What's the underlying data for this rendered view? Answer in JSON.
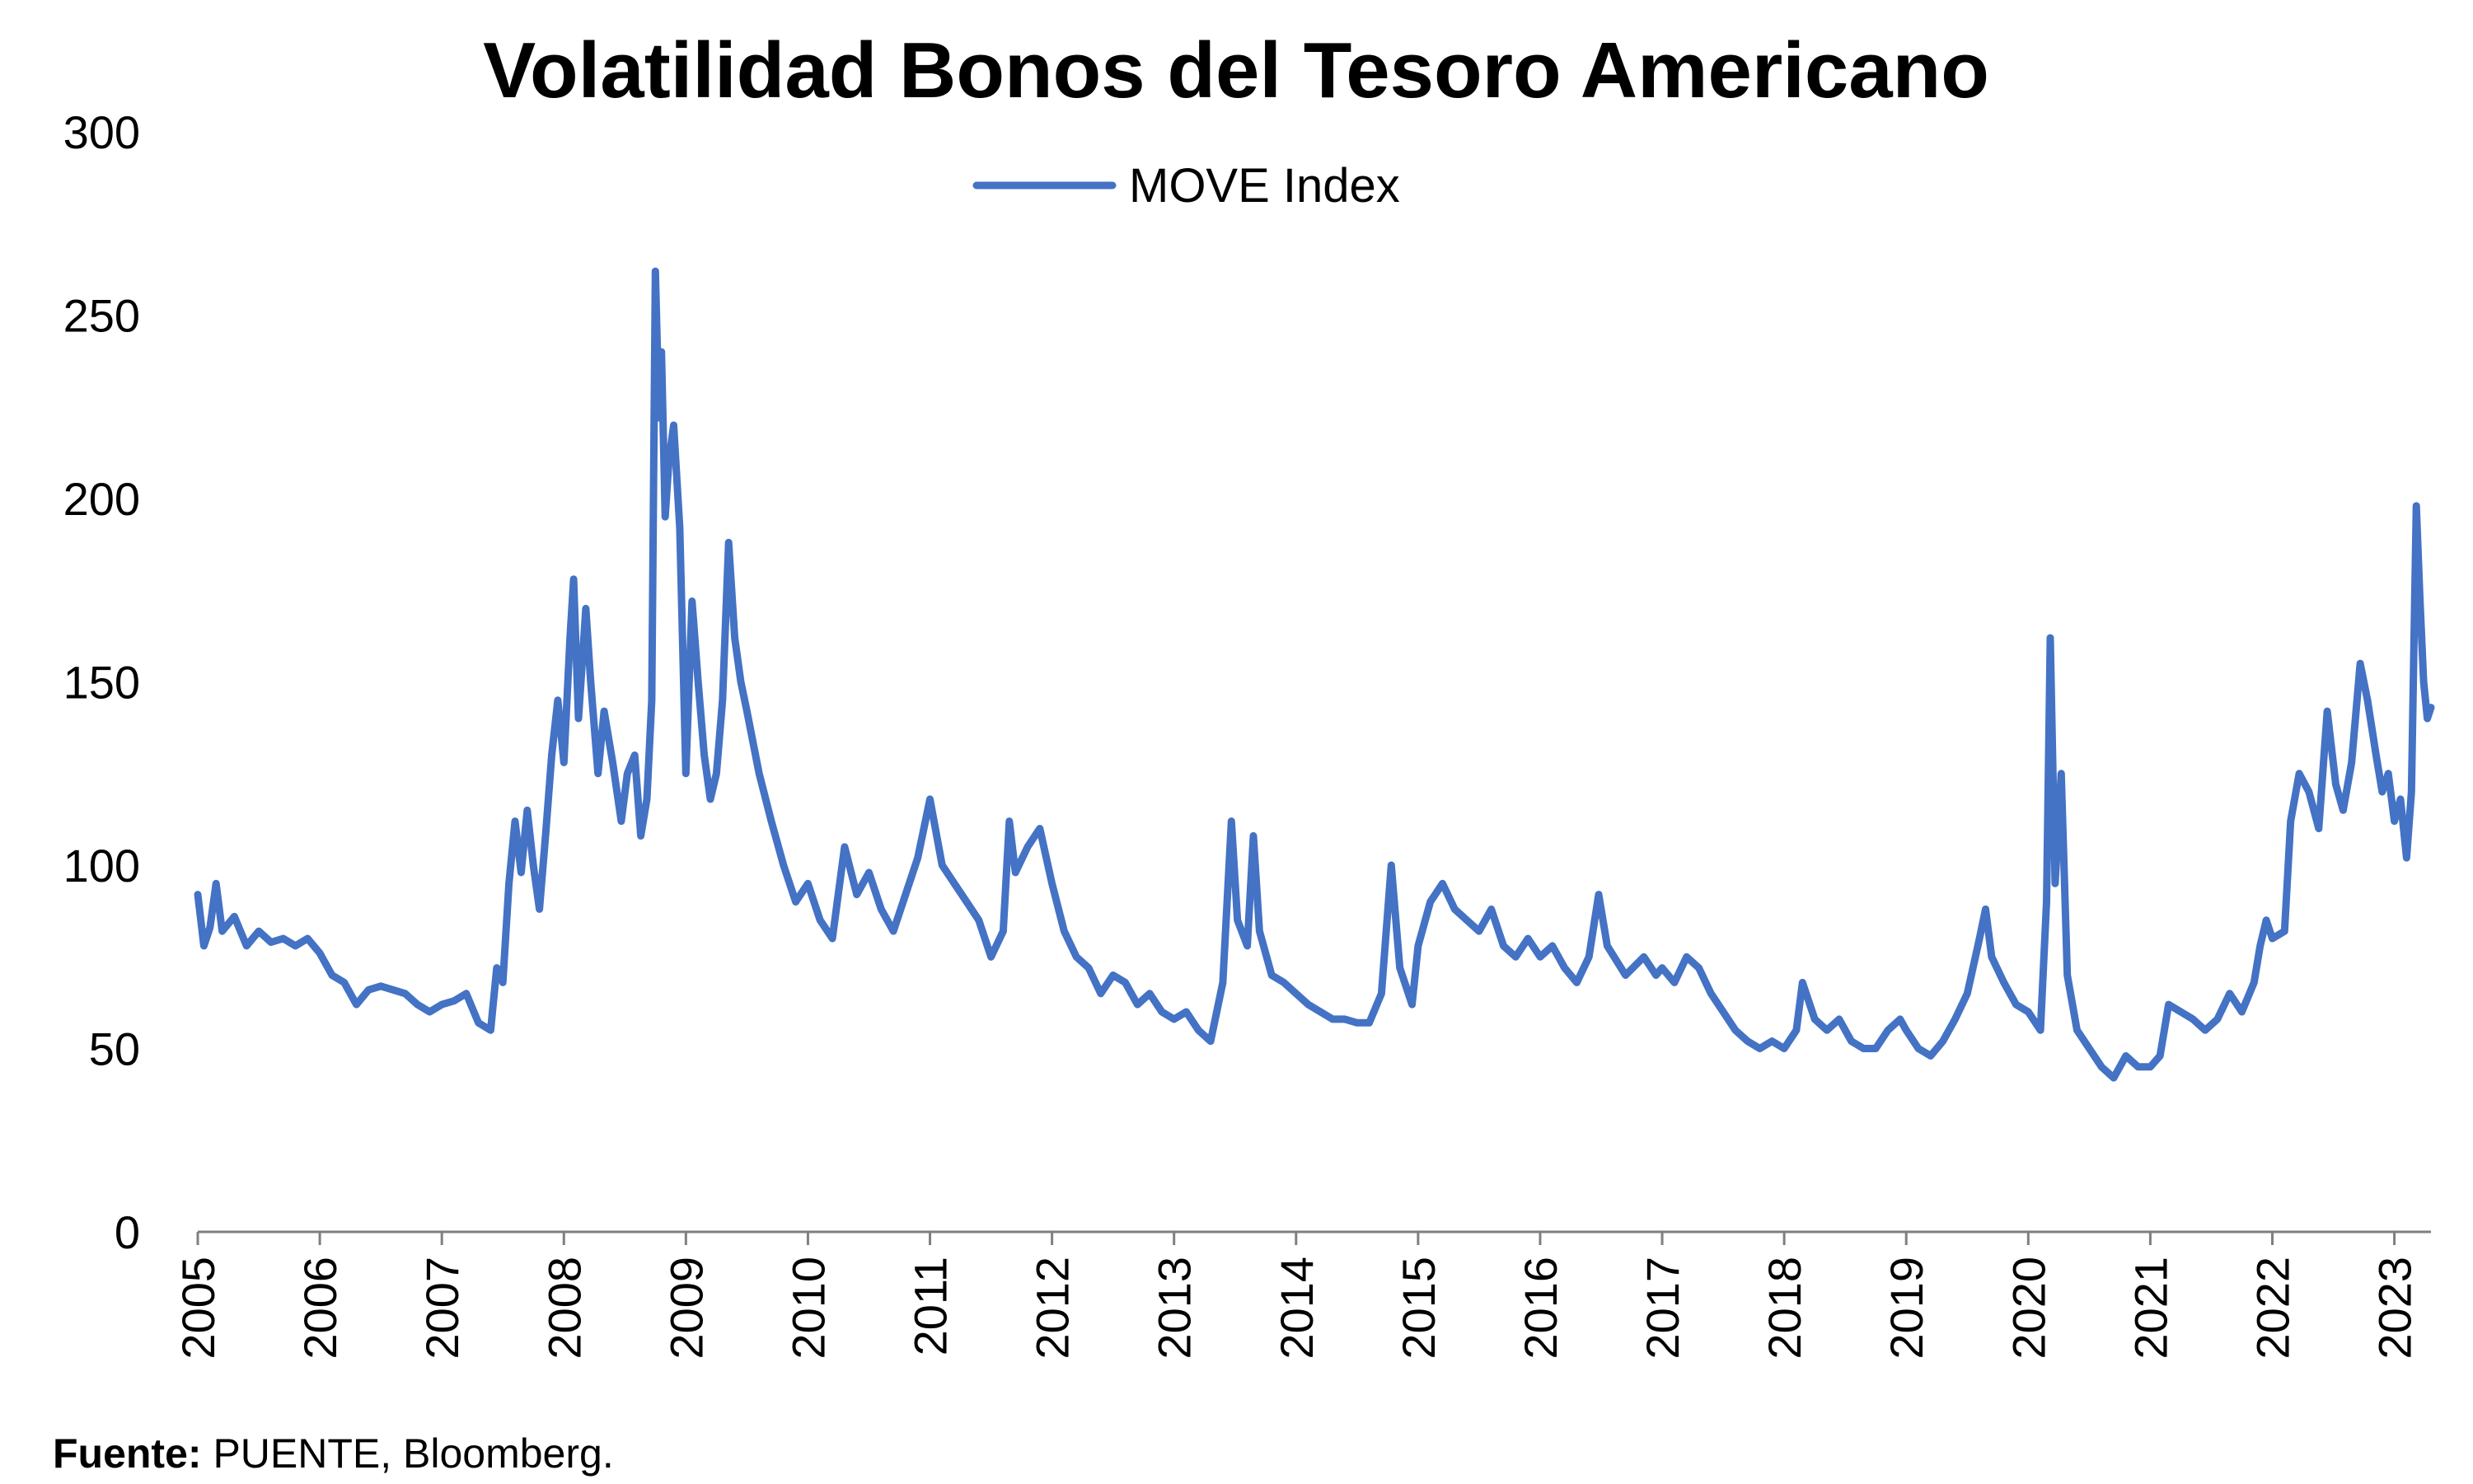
{
  "chart_data": {
    "type": "line",
    "title": "Volatilidad Bonos del Tesoro Americano",
    "xlabel": "",
    "ylabel": "",
    "ylim": [
      0,
      300
    ],
    "yticks": [
      "0",
      "50",
      "100",
      "150",
      "200",
      "250",
      "300"
    ],
    "xlim": [
      2005.0,
      2023.3
    ],
    "xticks": [
      "2005",
      "2006",
      "2007",
      "2008",
      "2009",
      "2010",
      "2011",
      "2012",
      "2013",
      "2014",
      "2015",
      "2016",
      "2017",
      "2018",
      "2019",
      "2020",
      "2021",
      "2022",
      "2023"
    ],
    "grid": false,
    "legend_position": "top-center",
    "series": [
      {
        "name": "MOVE Index",
        "color": "#4472C4",
        "points": [
          [
            2005.0,
            92
          ],
          [
            2005.05,
            78
          ],
          [
            2005.1,
            83
          ],
          [
            2005.15,
            95
          ],
          [
            2005.2,
            82
          ],
          [
            2005.3,
            86
          ],
          [
            2005.4,
            78
          ],
          [
            2005.5,
            82
          ],
          [
            2005.6,
            79
          ],
          [
            2005.7,
            80
          ],
          [
            2005.8,
            78
          ],
          [
            2005.9,
            80
          ],
          [
            2006.0,
            76
          ],
          [
            2006.1,
            70
          ],
          [
            2006.2,
            68
          ],
          [
            2006.3,
            62
          ],
          [
            2006.4,
            66
          ],
          [
            2006.5,
            67
          ],
          [
            2006.6,
            66
          ],
          [
            2006.7,
            65
          ],
          [
            2006.8,
            62
          ],
          [
            2006.9,
            60
          ],
          [
            2007.0,
            62
          ],
          [
            2007.1,
            63
          ],
          [
            2007.2,
            65
          ],
          [
            2007.3,
            57
          ],
          [
            2007.4,
            55
          ],
          [
            2007.45,
            72
          ],
          [
            2007.5,
            68
          ],
          [
            2007.55,
            95
          ],
          [
            2007.6,
            112
          ],
          [
            2007.65,
            98
          ],
          [
            2007.7,
            115
          ],
          [
            2007.75,
            100
          ],
          [
            2007.8,
            88
          ],
          [
            2007.85,
            108
          ],
          [
            2007.9,
            130
          ],
          [
            2007.95,
            145
          ],
          [
            2008.0,
            128
          ],
          [
            2008.05,
            162
          ],
          [
            2008.08,
            178
          ],
          [
            2008.12,
            140
          ],
          [
            2008.18,
            170
          ],
          [
            2008.22,
            150
          ],
          [
            2008.28,
            125
          ],
          [
            2008.33,
            142
          ],
          [
            2008.4,
            128
          ],
          [
            2008.47,
            112
          ],
          [
            2008.52,
            125
          ],
          [
            2008.58,
            130
          ],
          [
            2008.63,
            108
          ],
          [
            2008.68,
            118
          ],
          [
            2008.72,
            145
          ],
          [
            2008.75,
            262
          ],
          [
            2008.78,
            222
          ],
          [
            2008.8,
            240
          ],
          [
            2008.83,
            195
          ],
          [
            2008.86,
            210
          ],
          [
            2008.9,
            220
          ],
          [
            2008.95,
            192
          ],
          [
            2009.0,
            125
          ],
          [
            2009.05,
            172
          ],
          [
            2009.1,
            150
          ],
          [
            2009.15,
            130
          ],
          [
            2009.2,
            118
          ],
          [
            2009.25,
            125
          ],
          [
            2009.3,
            145
          ],
          [
            2009.35,
            188
          ],
          [
            2009.4,
            162
          ],
          [
            2009.45,
            150
          ],
          [
            2009.5,
            142
          ],
          [
            2009.6,
            125
          ],
          [
            2009.7,
            112
          ],
          [
            2009.8,
            100
          ],
          [
            2009.9,
            90
          ],
          [
            2010.0,
            95
          ],
          [
            2010.1,
            85
          ],
          [
            2010.2,
            80
          ],
          [
            2010.3,
            105
          ],
          [
            2010.4,
            92
          ],
          [
            2010.5,
            98
          ],
          [
            2010.6,
            88
          ],
          [
            2010.7,
            82
          ],
          [
            2010.8,
            92
          ],
          [
            2010.9,
            102
          ],
          [
            2011.0,
            118
          ],
          [
            2011.1,
            100
          ],
          [
            2011.2,
            95
          ],
          [
            2011.3,
            90
          ],
          [
            2011.4,
            85
          ],
          [
            2011.5,
            75
          ],
          [
            2011.6,
            82
          ],
          [
            2011.65,
            112
          ],
          [
            2011.7,
            98
          ],
          [
            2011.8,
            105
          ],
          [
            2011.9,
            110
          ],
          [
            2012.0,
            95
          ],
          [
            2012.1,
            82
          ],
          [
            2012.2,
            75
          ],
          [
            2012.3,
            72
          ],
          [
            2012.4,
            65
          ],
          [
            2012.5,
            70
          ],
          [
            2012.6,
            68
          ],
          [
            2012.7,
            62
          ],
          [
            2012.8,
            65
          ],
          [
            2012.9,
            60
          ],
          [
            2013.0,
            58
          ],
          [
            2013.1,
            60
          ],
          [
            2013.2,
            55
          ],
          [
            2013.3,
            52
          ],
          [
            2013.4,
            68
          ],
          [
            2013.47,
            112
          ],
          [
            2013.52,
            85
          ],
          [
            2013.6,
            78
          ],
          [
            2013.65,
            108
          ],
          [
            2013.7,
            82
          ],
          [
            2013.8,
            70
          ],
          [
            2013.9,
            68
          ],
          [
            2014.0,
            65
          ],
          [
            2014.1,
            62
          ],
          [
            2014.2,
            60
          ],
          [
            2014.3,
            58
          ],
          [
            2014.4,
            58
          ],
          [
            2014.5,
            57
          ],
          [
            2014.6,
            57
          ],
          [
            2014.7,
            65
          ],
          [
            2014.78,
            100
          ],
          [
            2014.85,
            72
          ],
          [
            2014.95,
            62
          ],
          [
            2015.0,
            78
          ],
          [
            2015.1,
            90
          ],
          [
            2015.2,
            95
          ],
          [
            2015.3,
            88
          ],
          [
            2015.4,
            85
          ],
          [
            2015.5,
            82
          ],
          [
            2015.6,
            88
          ],
          [
            2015.7,
            78
          ],
          [
            2015.8,
            75
          ],
          [
            2015.9,
            80
          ],
          [
            2016.0,
            75
          ],
          [
            2016.1,
            78
          ],
          [
            2016.2,
            72
          ],
          [
            2016.3,
            68
          ],
          [
            2016.4,
            75
          ],
          [
            2016.48,
            92
          ],
          [
            2016.55,
            78
          ],
          [
            2016.7,
            70
          ],
          [
            2016.85,
            75
          ],
          [
            2016.95,
            70
          ],
          [
            2017.0,
            72
          ],
          [
            2017.1,
            68
          ],
          [
            2017.2,
            75
          ],
          [
            2017.3,
            72
          ],
          [
            2017.4,
            65
          ],
          [
            2017.5,
            60
          ],
          [
            2017.6,
            55
          ],
          [
            2017.7,
            52
          ],
          [
            2017.8,
            50
          ],
          [
            2017.9,
            52
          ],
          [
            2018.0,
            50
          ],
          [
            2018.1,
            55
          ],
          [
            2018.15,
            68
          ],
          [
            2018.25,
            58
          ],
          [
            2018.35,
            55
          ],
          [
            2018.45,
            58
          ],
          [
            2018.55,
            52
          ],
          [
            2018.65,
            50
          ],
          [
            2018.75,
            50
          ],
          [
            2018.85,
            55
          ],
          [
            2018.95,
            58
          ],
          [
            2019.0,
            55
          ],
          [
            2019.1,
            50
          ],
          [
            2019.2,
            48
          ],
          [
            2019.3,
            52
          ],
          [
            2019.4,
            58
          ],
          [
            2019.5,
            65
          ],
          [
            2019.6,
            80
          ],
          [
            2019.65,
            88
          ],
          [
            2019.7,
            75
          ],
          [
            2019.8,
            68
          ],
          [
            2019.9,
            62
          ],
          [
            2020.0,
            60
          ],
          [
            2020.1,
            55
          ],
          [
            2020.15,
            90
          ],
          [
            2020.18,
            162
          ],
          [
            2020.22,
            95
          ],
          [
            2020.27,
            125
          ],
          [
            2020.32,
            70
          ],
          [
            2020.4,
            55
          ],
          [
            2020.5,
            50
          ],
          [
            2020.6,
            45
          ],
          [
            2020.7,
            42
          ],
          [
            2020.8,
            48
          ],
          [
            2020.9,
            45
          ],
          [
            2021.0,
            45
          ],
          [
            2021.08,
            48
          ],
          [
            2021.15,
            62
          ],
          [
            2021.25,
            60
          ],
          [
            2021.35,
            58
          ],
          [
            2021.45,
            55
          ],
          [
            2021.55,
            58
          ],
          [
            2021.65,
            65
          ],
          [
            2021.75,
            60
          ],
          [
            2021.85,
            68
          ],
          [
            2021.9,
            78
          ],
          [
            2021.95,
            85
          ],
          [
            2022.0,
            80
          ],
          [
            2022.1,
            82
          ],
          [
            2022.15,
            112
          ],
          [
            2022.22,
            125
          ],
          [
            2022.3,
            120
          ],
          [
            2022.38,
            110
          ],
          [
            2022.45,
            142
          ],
          [
            2022.52,
            122
          ],
          [
            2022.58,
            115
          ],
          [
            2022.65,
            128
          ],
          [
            2022.72,
            155
          ],
          [
            2022.78,
            145
          ],
          [
            2022.85,
            130
          ],
          [
            2022.9,
            120
          ],
          [
            2022.95,
            125
          ],
          [
            2023.0,
            112
          ],
          [
            2023.05,
            118
          ],
          [
            2023.1,
            102
          ],
          [
            2023.14,
            120
          ],
          [
            2023.18,
            198
          ],
          [
            2023.21,
            172
          ],
          [
            2023.24,
            150
          ],
          [
            2023.27,
            140
          ],
          [
            2023.3,
            143
          ]
        ]
      }
    ]
  },
  "footer": {
    "source_label": "Fuente:",
    "source_text": " PUENTE, Bloomberg."
  }
}
